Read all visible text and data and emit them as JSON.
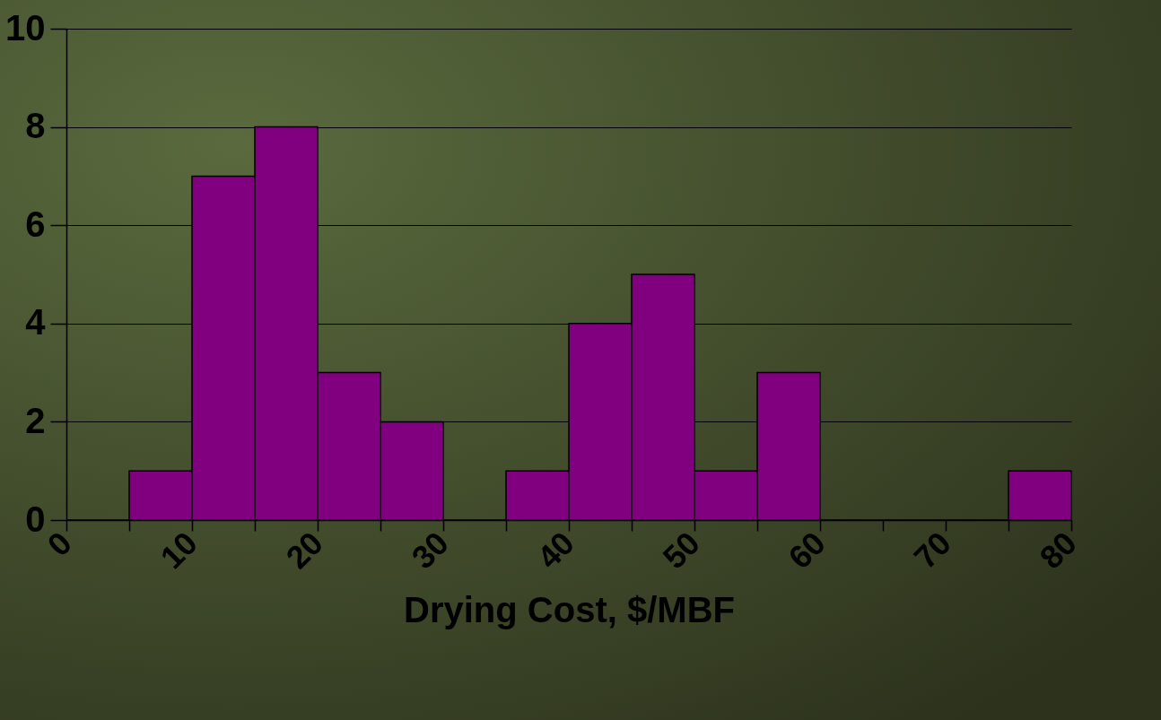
{
  "chart_data": {
    "type": "histogram",
    "xlabel": "Drying Cost, $/MBF",
    "bins": [
      0,
      5,
      10,
      15,
      20,
      25,
      30,
      35,
      40,
      45,
      50,
      55,
      60,
      65,
      70,
      75,
      80
    ],
    "values": [
      0,
      1,
      7,
      8,
      3,
      2,
      0,
      1,
      4,
      5,
      1,
      3,
      0,
      0,
      0,
      1
    ],
    "color": "#800080",
    "xlim": [
      0,
      80
    ],
    "xticks": [
      0,
      {
        "value": 5,
        "label": null
      },
      10,
      {
        "value": 15,
        "label": null
      },
      20,
      {
        "value": 25,
        "label": null
      },
      30,
      {
        "value": 35,
        "label": null
      },
      40,
      {
        "value": 45,
        "label": null
      },
      50,
      {
        "value": 55,
        "label": null
      },
      60,
      {
        "value": 65,
        "label": null
      },
      70,
      {
        "value": 75,
        "label": null
      },
      80
    ],
    "ylim": [
      0,
      10
    ],
    "yticks": [
      0,
      2,
      4,
      6,
      8,
      10
    ],
    "grid": "y"
  }
}
